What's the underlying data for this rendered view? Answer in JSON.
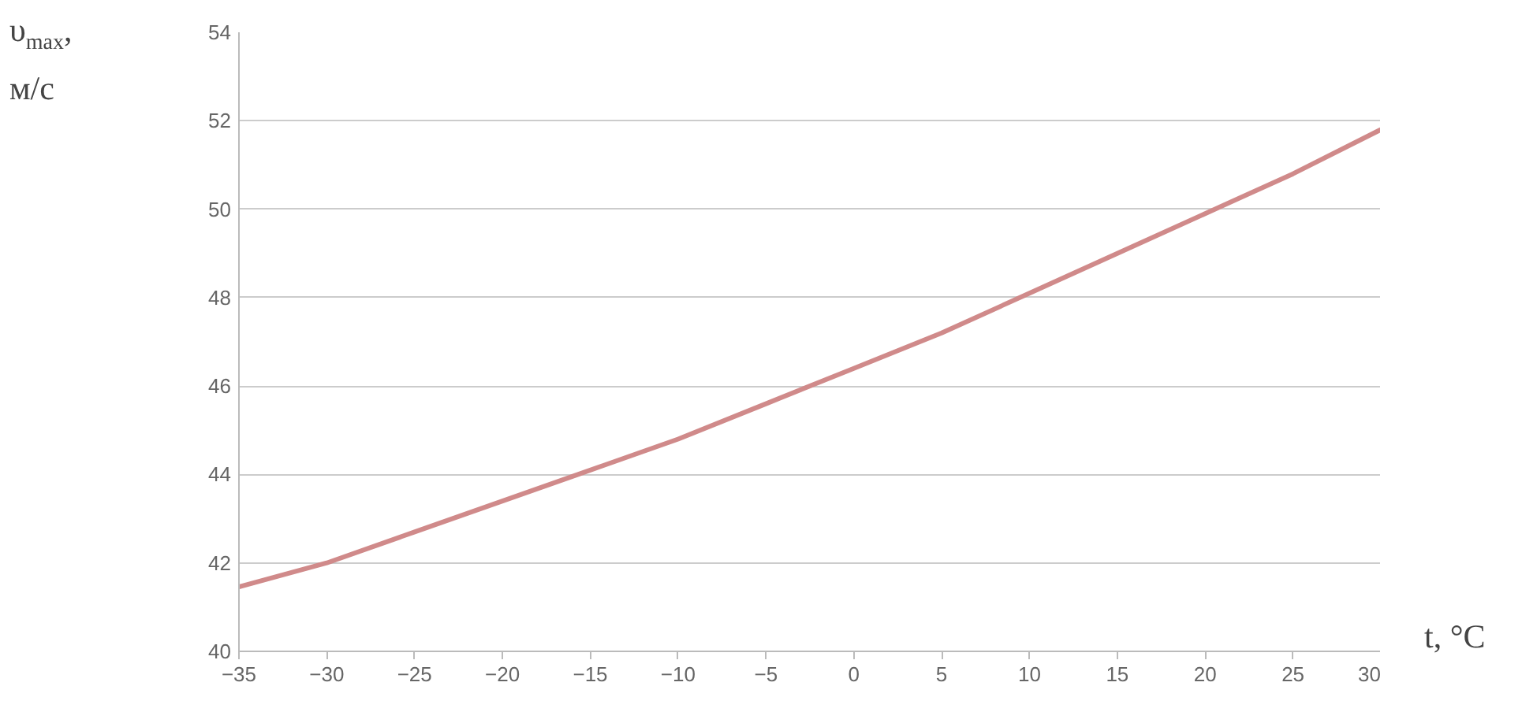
{
  "chart_data": {
    "type": "line",
    "xlabel": "t, °C",
    "ylabel": "υ$_{max}$,\nм/с",
    "x": [
      -35,
      -30,
      -25,
      -20,
      -15,
      -10,
      -5,
      0,
      5,
      10,
      15,
      20,
      25,
      30
    ],
    "series": [
      {
        "color": "#d08a8a",
        "values": [
          41.46,
          42.0,
          42.7,
          43.4,
          44.1,
          44.8,
          45.6,
          46.4,
          47.2,
          48.1,
          49.0,
          49.9,
          50.8,
          51.8
        ]
      }
    ],
    "xlim": [
      -35,
      30
    ],
    "xticks": [
      -35,
      -30,
      -25,
      -20,
      -15,
      -10,
      -5,
      0,
      5,
      10,
      15,
      20,
      25,
      30
    ],
    "ylim": [
      40,
      54
    ],
    "yticks": [
      40,
      42,
      44,
      46,
      48,
      50,
      52,
      54
    ],
    "grid": "y",
    "marker": "none",
    "line_style": "solid"
  }
}
